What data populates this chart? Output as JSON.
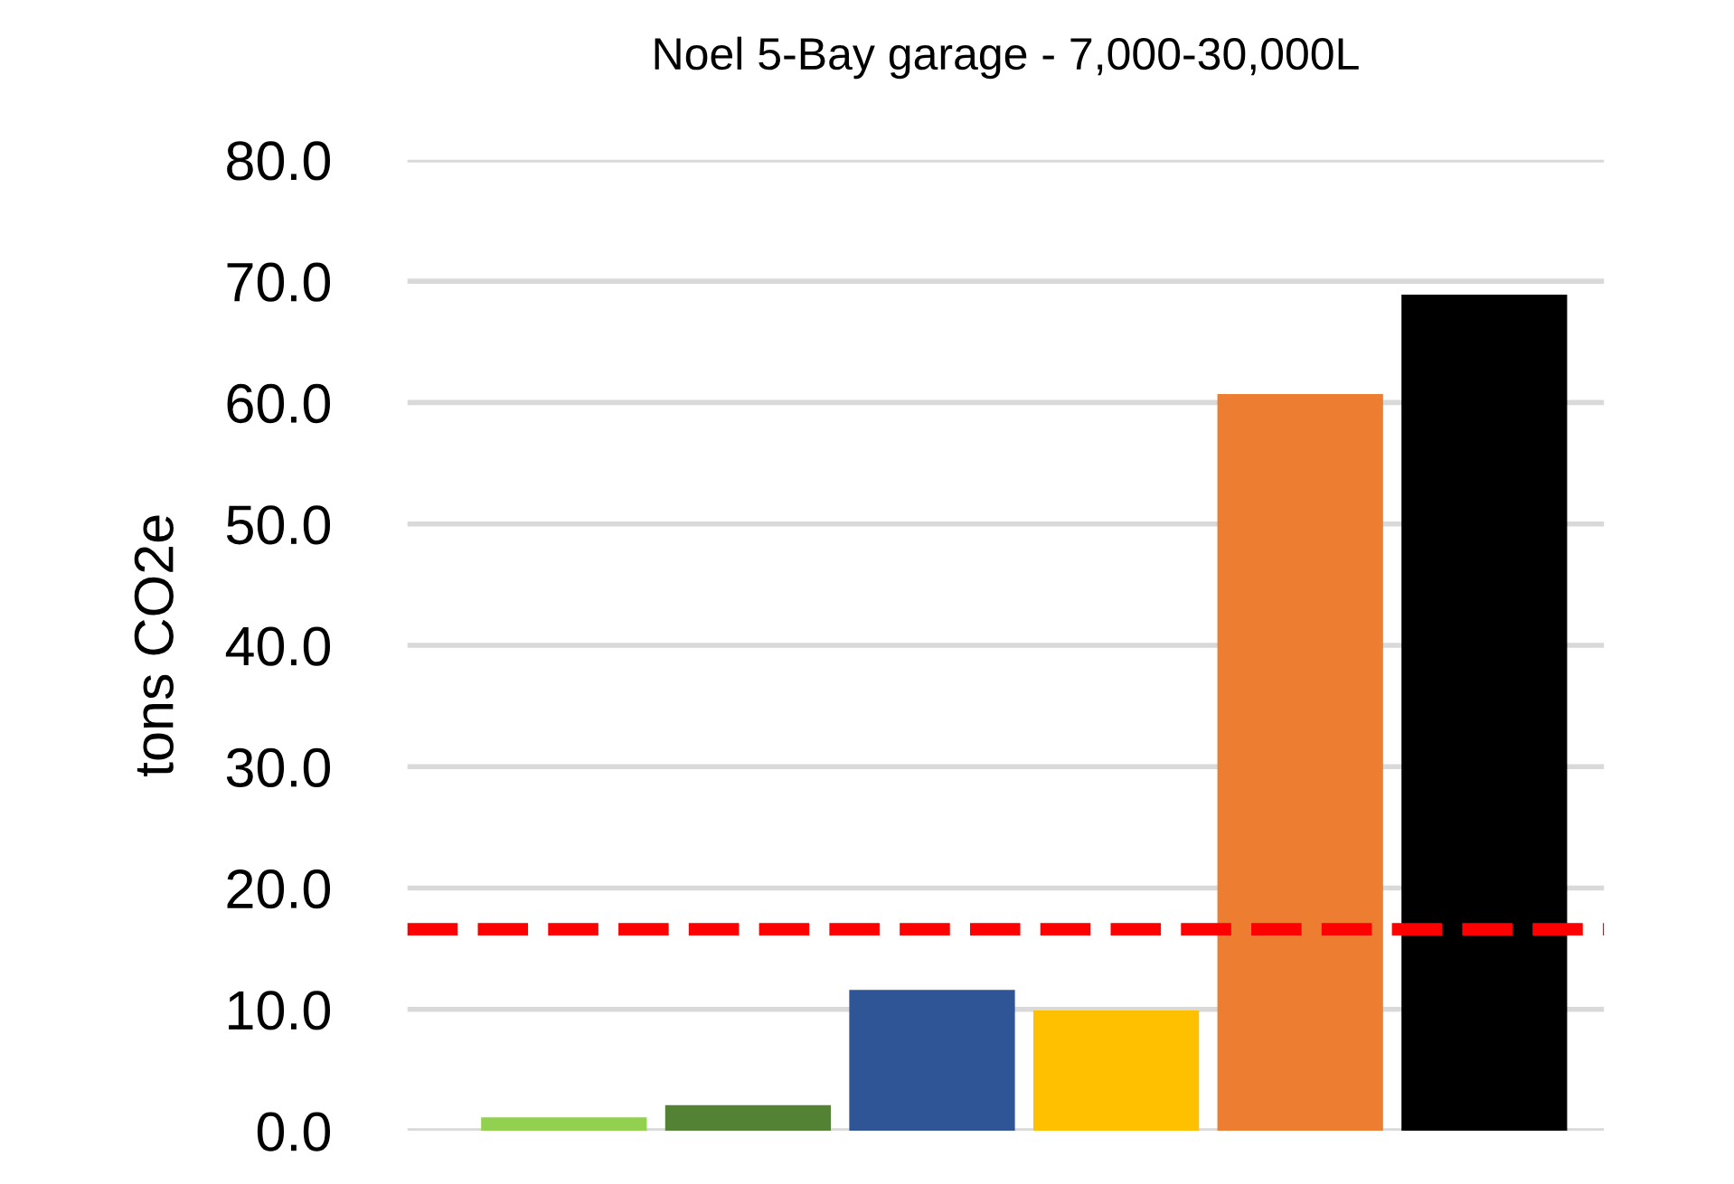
{
  "chart_data": {
    "type": "bar",
    "title": "Noel 5-Bay garage - 7,000-30,000L",
    "ylabel": "tons CO2e",
    "categories": [
      null,
      null,
      null,
      null,
      null,
      null
    ],
    "values": [
      1.1,
      2.1,
      11.6,
      9.9,
      60.7,
      68.9
    ],
    "colors": [
      "#92d050",
      "#548235",
      "#2f5597",
      "#ffc000",
      "#ed7d31",
      "#000000"
    ],
    "ylim": [
      0,
      80
    ],
    "yticks": [
      {
        "value": 0,
        "label": "0.0"
      },
      {
        "value": 10,
        "label": "10.0"
      },
      {
        "value": 20,
        "label": "20.0"
      },
      {
        "value": 30,
        "label": "30.0"
      },
      {
        "value": 40,
        "label": "40.0"
      },
      {
        "value": 50,
        "label": "50.0"
      },
      {
        "value": 60,
        "label": "60.0"
      },
      {
        "value": 70,
        "label": "70.0"
      },
      {
        "value": 80,
        "label": "80.0"
      }
    ],
    "ref_lines": [
      {
        "axis": "y",
        "value": 16.6,
        "color": "#ff0000",
        "line_style": "dashed"
      }
    ],
    "grid": "y",
    "legend": false
  }
}
